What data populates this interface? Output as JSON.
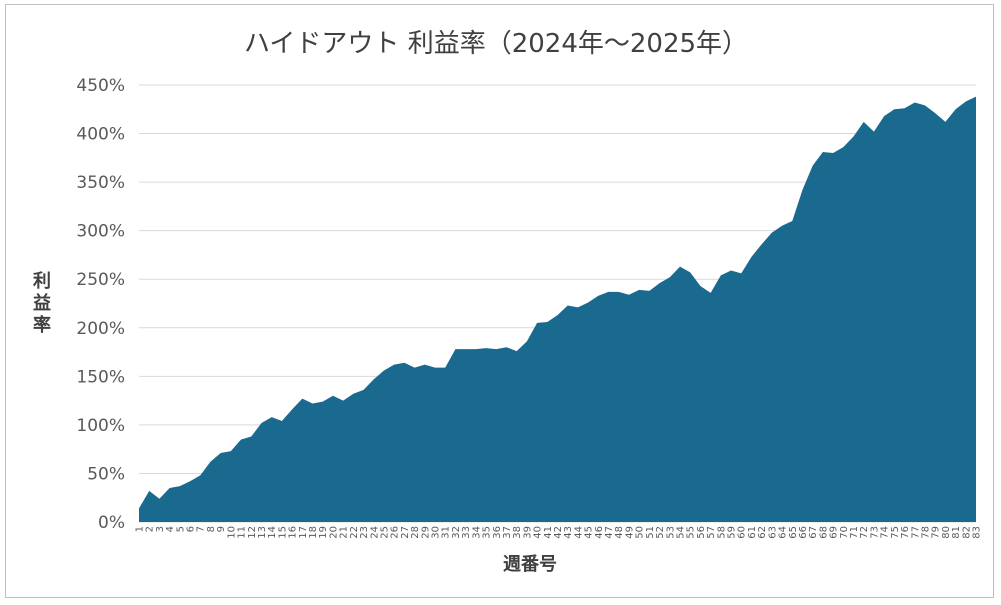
{
  "chart_data": {
    "type": "area",
    "title": "ハイドアウト 利益率（2024年～2025年）",
    "xlabel": "週番号",
    "ylabel": "利益率",
    "color": "#1a6a90",
    "ylim": [
      0,
      450
    ],
    "yticks": [
      0,
      50,
      100,
      150,
      200,
      250,
      300,
      350,
      400,
      450
    ],
    "ytick_labels": [
      "0%",
      "50%",
      "100%",
      "150%",
      "200%",
      "250%",
      "300%",
      "350%",
      "400%",
      "450%"
    ],
    "grid": true,
    "legend": "none",
    "x": [
      1,
      2,
      3,
      4,
      5,
      6,
      7,
      8,
      9,
      10,
      11,
      12,
      13,
      14,
      15,
      16,
      17,
      18,
      19,
      20,
      21,
      22,
      23,
      24,
      25,
      26,
      27,
      28,
      29,
      30,
      31,
      32,
      33,
      34,
      35,
      36,
      37,
      38,
      39,
      40,
      41,
      42,
      43,
      44,
      45,
      46,
      47,
      48,
      49,
      50,
      51,
      52,
      53,
      54,
      55,
      56,
      57,
      58,
      59,
      60,
      61,
      62,
      63,
      64,
      65,
      66,
      67,
      68,
      69,
      70,
      71,
      72,
      73,
      74,
      75,
      76,
      77,
      78,
      79,
      80,
      81,
      82,
      83
    ],
    "values": [
      14,
      32,
      24,
      35,
      37,
      42,
      48,
      62,
      71,
      73,
      85,
      88,
      102,
      108,
      104,
      116,
      127,
      122,
      124,
      130,
      125,
      132,
      136,
      147,
      156,
      162,
      164,
      159,
      162,
      159,
      159,
      178,
      178,
      178,
      179,
      178,
      180,
      176,
      186,
      205,
      206,
      213,
      223,
      221,
      226,
      233,
      237,
      237,
      234,
      239,
      238,
      246,
      252,
      263,
      257,
      243,
      236,
      254,
      259,
      256,
      273,
      286,
      298,
      305,
      310,
      342,
      367,
      381,
      380,
      386,
      397,
      412,
      402,
      418,
      425,
      426,
      432,
      429,
      421,
      412,
      425,
      433,
      438
    ]
  }
}
